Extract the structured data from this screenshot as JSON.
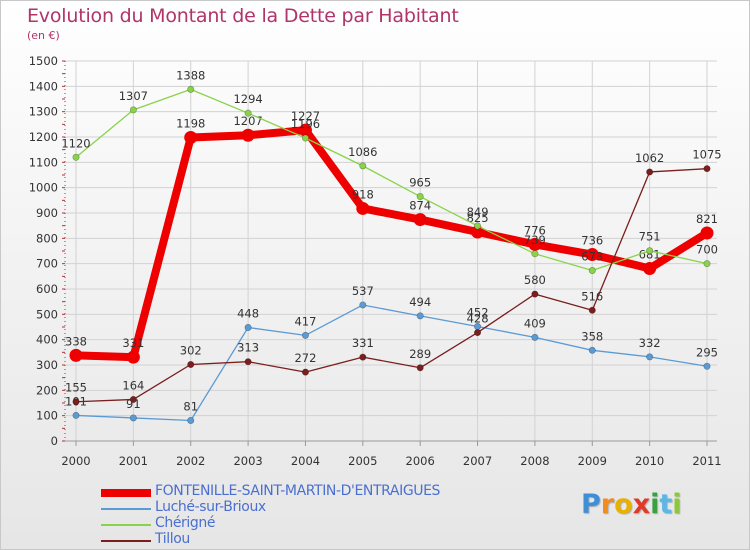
{
  "title": "Evolution du Montant de la Dette par Habitant",
  "unit": "(en €)",
  "brand": {
    "text": "Proxiti",
    "letters": [
      {
        "ch": "P",
        "color": "#3f8fd6"
      },
      {
        "ch": "r",
        "color": "#f28c1e"
      },
      {
        "ch": "o",
        "color": "#e8b000"
      },
      {
        "ch": "x",
        "color": "#e03a2a"
      },
      {
        "ch": "i",
        "color": "#3aa040"
      },
      {
        "ch": "t",
        "color": "#5cb6e6"
      },
      {
        "ch": "i",
        "color": "#8cc83c"
      }
    ]
  },
  "chart_data": {
    "type": "line",
    "title": "Evolution du Montant de la Dette par Habitant",
    "ylabel": "(en €)",
    "xlabel": "",
    "ylim": [
      0,
      1500
    ],
    "yticks": [
      0,
      100,
      200,
      300,
      400,
      500,
      600,
      700,
      800,
      900,
      1000,
      1100,
      1200,
      1300,
      1400,
      1500
    ],
    "grid": true,
    "legend_position": "bottom-left",
    "x": [
      "2000",
      "2001",
      "2002",
      "2003",
      "2004",
      "2005",
      "2006",
      "2007",
      "2008",
      "2009",
      "2010",
      "2011"
    ],
    "series": [
      {
        "name": "FONTENILLE-SAINT-MARTIN-D'ENTRAIGUES",
        "color": "#ee0000",
        "style": "bold",
        "values": [
          338,
          331,
          1198,
          1207,
          1227,
          918,
          874,
          825,
          776,
          736,
          681,
          821
        ]
      },
      {
        "name": "Luché-sur-Brioux",
        "color": "#5b9bd5",
        "style": "thin",
        "values": [
          101,
          91,
          81,
          448,
          417,
          537,
          494,
          452,
          409,
          358,
          332,
          295
        ]
      },
      {
        "name": "Chérigné",
        "color": "#88d34a",
        "style": "thin",
        "values": [
          1120,
          1307,
          1388,
          1294,
          1196,
          1086,
          965,
          849,
          739,
          673,
          751,
          700
        ]
      },
      {
        "name": "Tillou",
        "color": "#7a1e1e",
        "style": "thin",
        "values": [
          155,
          164,
          302,
          313,
          272,
          331,
          289,
          428,
          580,
          516,
          1062,
          1075
        ]
      }
    ]
  }
}
